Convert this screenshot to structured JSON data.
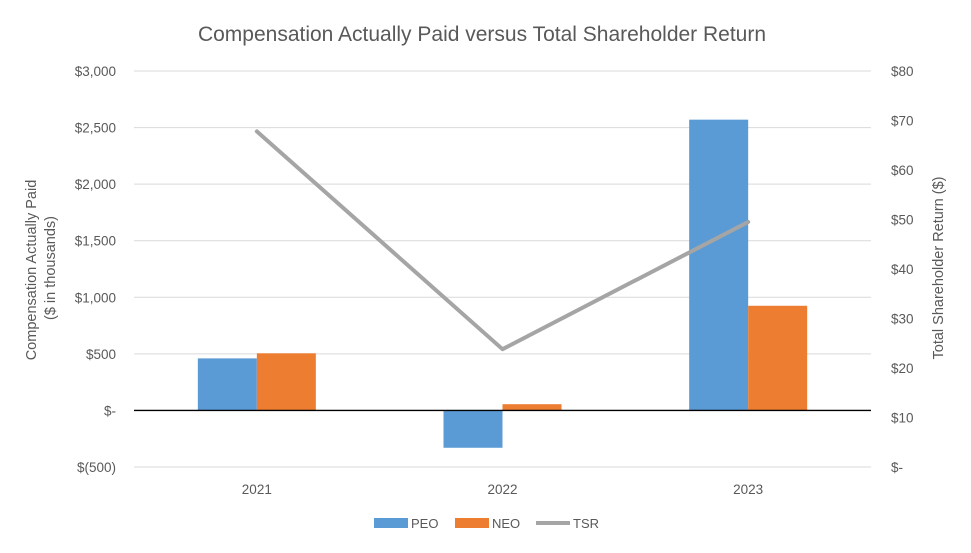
{
  "chart_data": {
    "type": "bar",
    "title": "Compensation Actually Paid versus Total Shareholder Return",
    "categories": [
      "2021",
      "2022",
      "2023"
    ],
    "series": [
      {
        "name": "PEO",
        "kind": "bar",
        "axis": "left",
        "color": "#5B9BD5",
        "values": [
          460,
          -330,
          2570
        ]
      },
      {
        "name": "NEO",
        "kind": "bar",
        "axis": "left",
        "color": "#ED7D31",
        "values": [
          505,
          55,
          925
        ]
      },
      {
        "name": "TSR",
        "kind": "line",
        "axis": "right",
        "color": "#A5A5A5",
        "values": [
          67.8,
          23.8,
          49.5
        ]
      }
    ],
    "y_left": {
      "label_line1": "Compensation Actually Paid",
      "label_line2": "($ in thousands)",
      "ylim": [
        -500,
        3000
      ],
      "ticks": [
        3000,
        2500,
        2000,
        1500,
        1000,
        500,
        0,
        -500
      ],
      "tick_labels": [
        "$3,000",
        "$2,500",
        "$2,000",
        "$1,500",
        "$1,000",
        "$500",
        "$-",
        "$(500)"
      ]
    },
    "y_right": {
      "label": "Total Shareholder Return ($)",
      "ylim": [
        0,
        80
      ],
      "ticks": [
        80,
        70,
        60,
        50,
        40,
        30,
        20,
        10,
        0
      ],
      "tick_labels": [
        "$80",
        "$70",
        "$60",
        "$50",
        "$40",
        "$30",
        "$20",
        "$10",
        "$-"
      ]
    },
    "legend": {
      "position": "bottom",
      "entries": [
        "PEO",
        "NEO",
        "TSR"
      ]
    },
    "grid": true
  }
}
